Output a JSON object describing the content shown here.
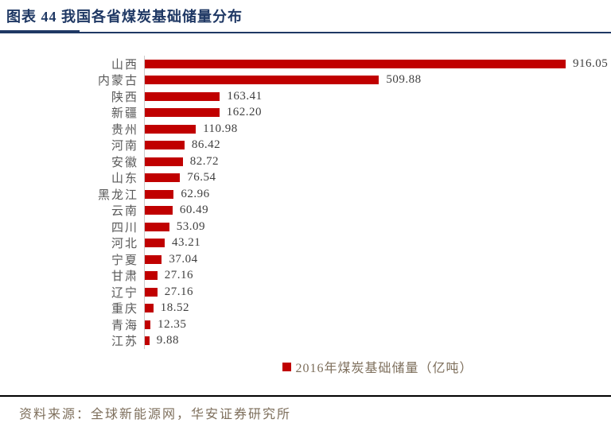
{
  "header": {
    "title": "图表 44  我国各省煤炭基础储量分布"
  },
  "footer": {
    "source": "资料来源：全球新能源网，华安证券研究所"
  },
  "colors": {
    "title_navy": "#1F3864",
    "bar_red": "#C00000",
    "category_label_gray": "#595959",
    "value_label_gray": "#3F3F3F",
    "legend_source_brown": "#7E6F5C",
    "axis_line_gray": "#CBCBCB",
    "footer_rule_black": "#000000"
  },
  "chart_data": {
    "type": "bar",
    "orientation": "horizontal",
    "title": "",
    "xlabel": "",
    "ylabel": "",
    "grid": false,
    "axis_tick_labels": "none",
    "data_labels": true,
    "legend_position": "bottom-center",
    "legend": [
      {
        "label": "2016年煤炭基础储量（亿吨）",
        "color": "#C00000"
      }
    ],
    "categories": [
      "山西",
      "内蒙古",
      "陕西",
      "新疆",
      "贵州",
      "河南",
      "安徽",
      "山东",
      "黑龙江",
      "云南",
      "四川",
      "河北",
      "宁夏",
      "甘肃",
      "辽宁",
      "重庆",
      "青海",
      "江苏"
    ],
    "values": [
      916.05,
      509.88,
      163.41,
      162.2,
      110.98,
      86.42,
      82.72,
      76.54,
      62.96,
      60.49,
      53.09,
      43.21,
      37.04,
      27.16,
      27.16,
      18.52,
      12.35,
      9.88
    ],
    "value_labels": [
      "916.05",
      "509.88",
      "163.41",
      "162.20",
      "110.98",
      "86.42",
      "82.72",
      "76.54",
      "62.96",
      "60.49",
      "53.09",
      "43.21",
      "37.04",
      "27.16",
      "27.16",
      "18.52",
      "12.35",
      "9.88"
    ],
    "xlim": [
      0,
      1000
    ],
    "unit": "亿吨"
  }
}
